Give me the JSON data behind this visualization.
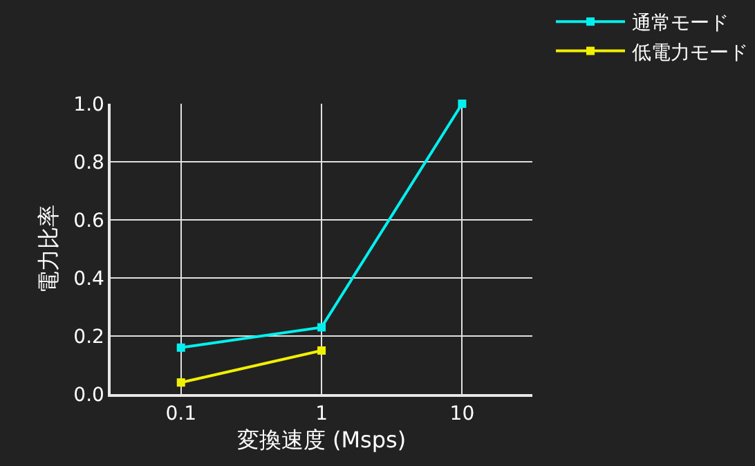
{
  "chart_data": {
    "type": "line",
    "xlabel": "変換速度 (Msps)",
    "ylabel": "電力比率",
    "log": "x",
    "x": [
      0.1,
      1,
      10
    ],
    "series": [
      {
        "name": "通常モード",
        "color": "#00f0f0",
        "values": [
          0.16,
          0.23,
          1.0
        ]
      },
      {
        "name": "低電力モード",
        "color": "#f0f000",
        "values": [
          0.04,
          0.15,
          null
        ]
      }
    ],
    "xlim": [
      0.0316,
      31.6
    ],
    "xticks": [
      0.1,
      1,
      10
    ],
    "ylim": [
      0,
      1.0
    ],
    "yticks": [
      {
        "value": 0,
        "label": "0.0"
      },
      {
        "value": 0.2,
        "label": "0.2"
      },
      {
        "value": 0.4,
        "label": "0.4"
      },
      {
        "value": 0.6,
        "label": "0.6"
      },
      {
        "value": 0.8,
        "label": "0.8"
      },
      {
        "value": 1.0,
        "label": "1.0"
      }
    ],
    "grid": true,
    "legend": "top right",
    "marker": "square",
    "line_style": "solid"
  }
}
